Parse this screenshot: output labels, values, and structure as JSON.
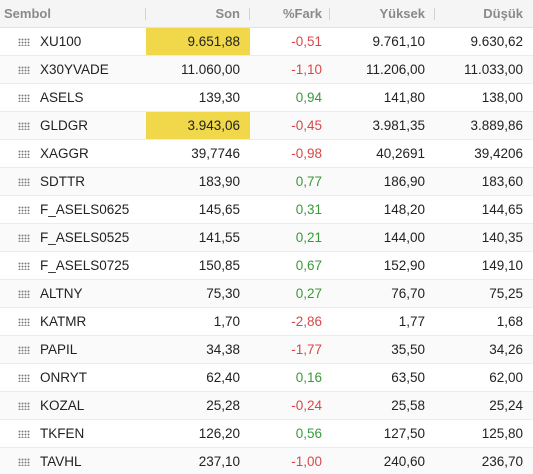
{
  "header": {
    "symbol": "Sembol",
    "last": "Son",
    "change": "%Fark",
    "high": "Yüksek",
    "low": "Düşük"
  },
  "colors": {
    "highlight": "#f0d84a",
    "positive": "#3a9a3a",
    "negative": "#d84848"
  },
  "rows": [
    {
      "symbol": "XU100",
      "last": "9.651,88",
      "change": "-0,51",
      "high": "9.761,10",
      "low": "9.630,62",
      "highlight": true,
      "direction": "neg"
    },
    {
      "symbol": "X30YVADE",
      "last": "11.060,00",
      "change": "-1,10",
      "high": "11.206,00",
      "low": "11.033,00",
      "highlight": false,
      "direction": "neg"
    },
    {
      "symbol": "ASELS",
      "last": "139,30",
      "change": "0,94",
      "high": "141,80",
      "low": "138,00",
      "highlight": false,
      "direction": "pos"
    },
    {
      "symbol": "GLDGR",
      "last": "3.943,06",
      "change": "-0,45",
      "high": "3.981,35",
      "low": "3.889,86",
      "highlight": true,
      "direction": "neg"
    },
    {
      "symbol": "XAGGR",
      "last": "39,7746",
      "change": "-0,98",
      "high": "40,2691",
      "low": "39,4206",
      "highlight": false,
      "direction": "neg"
    },
    {
      "symbol": "SDTTR",
      "last": "183,90",
      "change": "0,77",
      "high": "186,90",
      "low": "183,60",
      "highlight": false,
      "direction": "pos"
    },
    {
      "symbol": "F_ASELS0625",
      "last": "145,65",
      "change": "0,31",
      "high": "148,20",
      "low": "144,65",
      "highlight": false,
      "direction": "pos"
    },
    {
      "symbol": "F_ASELS0525",
      "last": "141,55",
      "change": "0,21",
      "high": "144,00",
      "low": "140,35",
      "highlight": false,
      "direction": "pos"
    },
    {
      "symbol": "F_ASELS0725",
      "last": "150,85",
      "change": "0,67",
      "high": "152,90",
      "low": "149,10",
      "highlight": false,
      "direction": "pos"
    },
    {
      "symbol": "ALTNY",
      "last": "75,30",
      "change": "0,27",
      "high": "76,70",
      "low": "75,25",
      "highlight": false,
      "direction": "pos"
    },
    {
      "symbol": "KATMR",
      "last": "1,70",
      "change": "-2,86",
      "high": "1,77",
      "low": "1,68",
      "highlight": false,
      "direction": "neg"
    },
    {
      "symbol": "PAPIL",
      "last": "34,38",
      "change": "-1,77",
      "high": "35,50",
      "low": "34,26",
      "highlight": false,
      "direction": "neg"
    },
    {
      "symbol": "ONRYT",
      "last": "62,40",
      "change": "0,16",
      "high": "63,50",
      "low": "62,00",
      "highlight": false,
      "direction": "pos"
    },
    {
      "symbol": "KOZAL",
      "last": "25,28",
      "change": "-0,24",
      "high": "25,58",
      "low": "25,24",
      "highlight": false,
      "direction": "neg"
    },
    {
      "symbol": "TKFEN",
      "last": "126,20",
      "change": "0,56",
      "high": "127,50",
      "low": "125,80",
      "highlight": false,
      "direction": "pos"
    },
    {
      "symbol": "TAVHL",
      "last": "237,10",
      "change": "-1,00",
      "high": "240,60",
      "low": "236,70",
      "highlight": false,
      "direction": "neg"
    }
  ]
}
